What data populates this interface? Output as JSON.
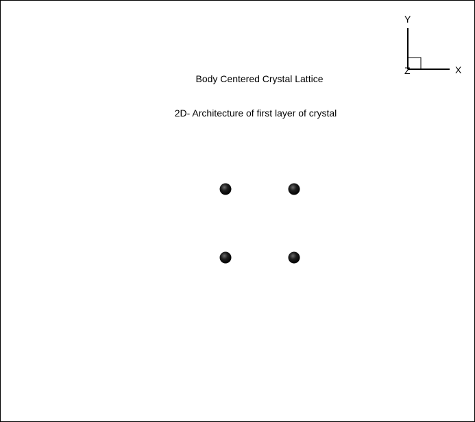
{
  "diagram": {
    "title": "Body Centered Crystal Lattice",
    "subtitle": "2D- Architecture of first layer of crystal",
    "axes": {
      "x_label": "X",
      "y_label": "Y",
      "z_label": "Z"
    },
    "atoms": {
      "count": 4,
      "color": "#000000"
    }
  }
}
